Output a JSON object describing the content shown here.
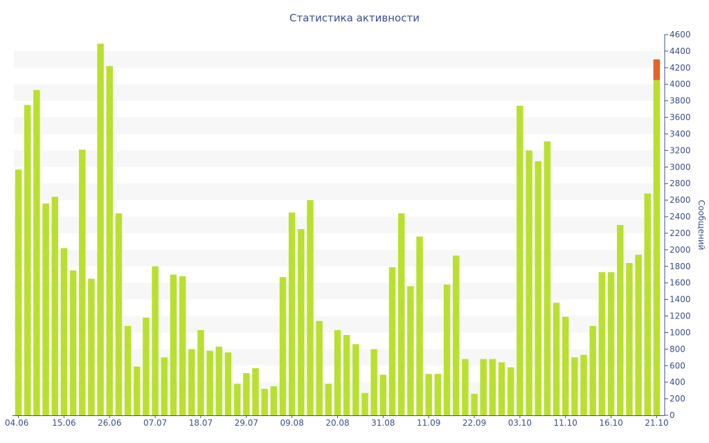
{
  "chart_data": {
    "type": "bar",
    "title": "Статистика активности",
    "xlabel": "",
    "ylabel": "Сообщений",
    "ylim": [
      0,
      4600
    ],
    "y_ticks": [
      0,
      200,
      400,
      600,
      800,
      1000,
      1200,
      1400,
      1600,
      1800,
      2000,
      2200,
      2400,
      2600,
      2800,
      3000,
      3200,
      3400,
      3600,
      3800,
      4000,
      4200,
      4400,
      4600
    ],
    "grid": "horizontal-bands",
    "y_axis_position": "right",
    "bar_color": "#b9e02f",
    "highlight_color": "#e5622b",
    "band_color": "#f7f7f7",
    "axis_color": "#3b4f8c",
    "x_tick_labels": [
      {
        "index": 0,
        "label": "04.06"
      },
      {
        "index": 5,
        "label": "15.06"
      },
      {
        "index": 10,
        "label": "26.06"
      },
      {
        "index": 15,
        "label": "07.07"
      },
      {
        "index": 20,
        "label": "18.07"
      },
      {
        "index": 25,
        "label": "29.07"
      },
      {
        "index": 30,
        "label": "09.08"
      },
      {
        "index": 35,
        "label": "20.08"
      },
      {
        "index": 40,
        "label": "31.08"
      },
      {
        "index": 45,
        "label": "11.09"
      },
      {
        "index": 50,
        "label": "22.09"
      },
      {
        "index": 55,
        "label": "03.10"
      },
      {
        "index": 60,
        "label": "11.10"
      },
      {
        "index": 65,
        "label": "16.10"
      },
      {
        "index": 70,
        "label": "21.10"
      }
    ],
    "values": [
      2970,
      3750,
      3930,
      2560,
      2640,
      2020,
      1750,
      3210,
      1650,
      4490,
      4220,
      2440,
      1080,
      590,
      1180,
      1800,
      700,
      1700,
      1680,
      800,
      1030,
      780,
      830,
      760,
      380,
      510,
      570,
      320,
      350,
      1670,
      2450,
      2250,
      2600,
      1140,
      380,
      1030,
      970,
      860,
      270,
      800,
      490,
      1790,
      2440,
      1560,
      2160,
      500,
      500,
      1580,
      1930,
      680,
      260,
      680,
      680,
      640,
      580,
      3740,
      3200,
      3070,
      3310,
      1360,
      1190,
      700,
      730,
      1080,
      1730,
      1730,
      2300,
      1840,
      1940,
      2680,
      4050
    ],
    "highlight": {
      "index": 70,
      "value": 250
    }
  }
}
